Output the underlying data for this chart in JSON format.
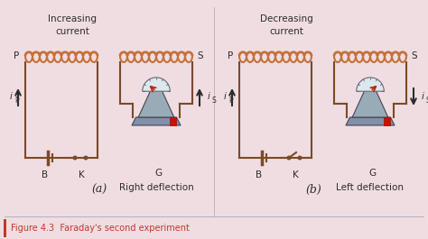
{
  "bg_color": "#f0dde2",
  "coil_color": "#c4713a",
  "wire_color": "#7a4a28",
  "text_color": "#2c2c2c",
  "fig_label_color": "#c0392b",
  "title_a": "Increasing\ncurrent",
  "title_b": "Decreasing\ncurrent",
  "label_a": "(a)",
  "label_b": "(b)",
  "deflection_a": "Right deflection",
  "deflection_b": "Left deflection",
  "figure_caption": "Figure 4.3  Faraday's second experiment"
}
